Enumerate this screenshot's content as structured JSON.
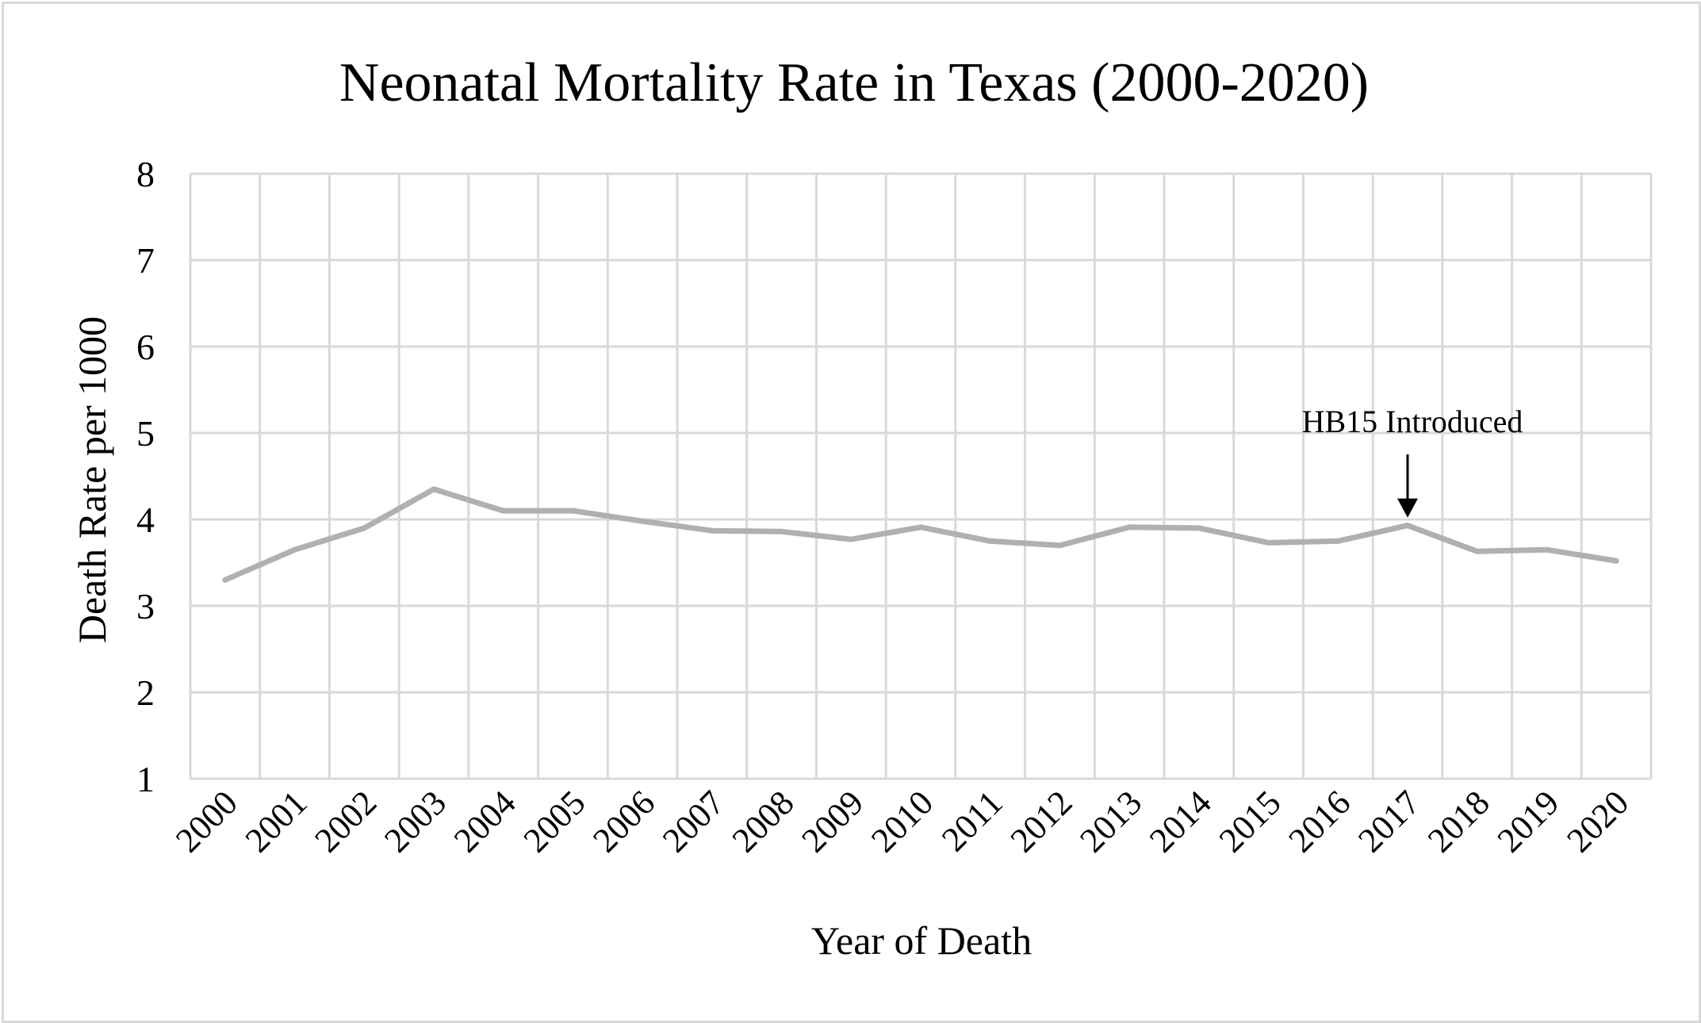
{
  "chart_data": {
    "type": "line",
    "title": "Neonatal Mortality Rate in Texas (2000-2020)",
    "xlabel": "Year of Death",
    "ylabel": "Death Rate per 1000",
    "ylim": [
      1,
      8
    ],
    "yticks": [
      "1",
      "2",
      "3",
      "4",
      "5",
      "6",
      "7",
      "8"
    ],
    "categories": [
      "2000",
      "2001",
      "2002",
      "2003",
      "2004",
      "2005",
      "2006",
      "2007",
      "2008",
      "2009",
      "2010",
      "2011",
      "2012",
      "2013",
      "2014",
      "2015",
      "2016",
      "2017",
      "2018",
      "2019",
      "2020"
    ],
    "series": [
      {
        "values": [
          3.3,
          3.65,
          3.9,
          4.35,
          4.1,
          4.1,
          3.98,
          3.87,
          3.86,
          3.77,
          3.91,
          3.75,
          3.7,
          3.91,
          3.9,
          3.73,
          3.75,
          3.93,
          3.63,
          3.65,
          3.52
        ],
        "color": "#b0b0b0"
      }
    ],
    "grid": true,
    "gridColor": "#d9d9d9",
    "annotations": [
      {
        "text": "HB15 Introduced",
        "category": "2017",
        "arrow": "down"
      }
    ]
  }
}
